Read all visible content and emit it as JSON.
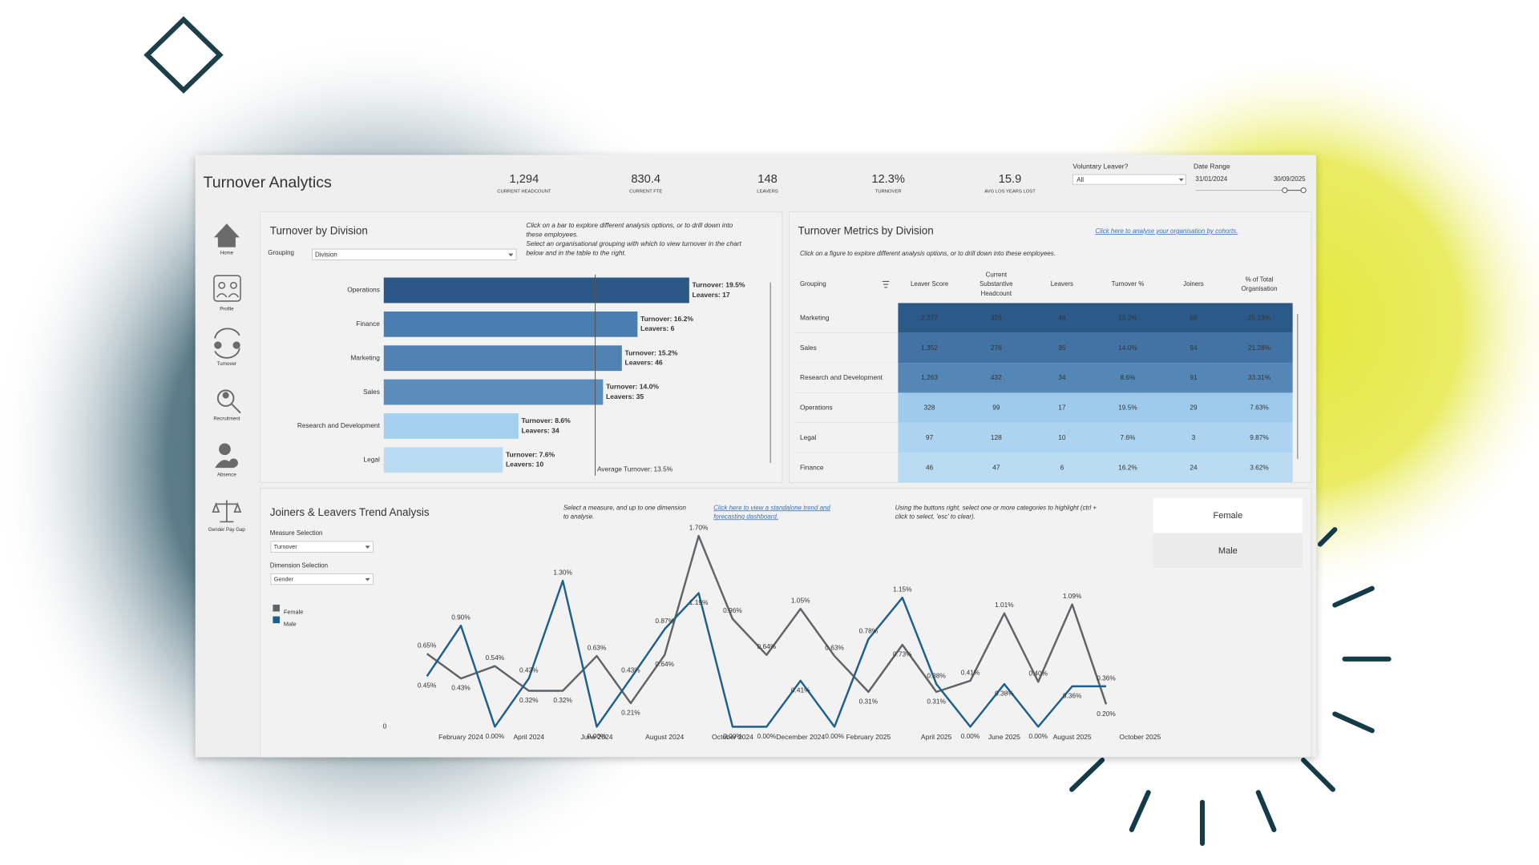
{
  "header": {
    "title": "Turnover Analytics"
  },
  "kpis": [
    {
      "value": "1,294",
      "label": "CURRENT HEADCOUNT",
      "color": "#222222"
    },
    {
      "value": "830.4",
      "label": "CURRENT FTE",
      "color": "#222222"
    },
    {
      "value": "148",
      "label": "LEAVERS",
      "color": "#222222"
    },
    {
      "value": "12.3%",
      "label": "TURNOVER",
      "color": "#d9702c"
    },
    {
      "value": "15.9",
      "label": "AVG LOS YEARS LOST",
      "color": "#222222"
    }
  ],
  "filters": {
    "voluntary_leaver": {
      "label": "Voluntary Leaver?",
      "value": "All"
    },
    "date_range": {
      "label": "Date Range",
      "start": "31/01/2024",
      "end": "30/09/2025"
    }
  },
  "nav": [
    "Home",
    "Profile",
    "Turnover",
    "Recruitment",
    "Absence",
    "Gender Pay Gap"
  ],
  "division_panel": {
    "notes": [
      "Click on a bar to explore different analysis options, or to drill down into",
      "these employees.",
      "Select an organisational grouping with which to view turnover in the chart",
      "below and in the table to the right."
    ],
    "grouping_label": "Grouping",
    "grouping_value": "Division"
  },
  "table": {
    "title": "Turnover Metrics by Division",
    "link": "Click here to analyse your organisation by cohorts.",
    "note": "Click on a figure to explore different analysis options, or to drill down into these employees.",
    "columns": [
      [
        "Grouping"
      ],
      [
        "Leaver Score"
      ],
      [
        "Current",
        "Substantive",
        "Headcount"
      ],
      [
        "Leavers"
      ],
      [
        "Turnover %"
      ],
      [
        "Joiners"
      ],
      [
        "% of Total",
        "Organisation"
      ]
    ],
    "rows": [
      [
        "Marketing",
        "2,277",
        "326",
        "46",
        "15.2%",
        "86",
        "25.13%"
      ],
      [
        "Sales",
        "1,352",
        "276",
        "35",
        "14.0%",
        "94",
        "21.28%"
      ],
      [
        "Research and Development",
        "1,263",
        "432",
        "34",
        "8.6%",
        "91",
        "33.31%"
      ],
      [
        "Operations",
        "328",
        "99",
        "17",
        "19.5%",
        "29",
        "7.63%"
      ],
      [
        "Legal",
        "97",
        "128",
        "10",
        "7.6%",
        "3",
        "9.87%"
      ],
      [
        "Finance",
        "46",
        "47",
        "6",
        "16.2%",
        "24",
        "3.62%"
      ]
    ],
    "row_colors": [
      "#2c5a88",
      "#4273a4",
      "#5486b6",
      "#9ecbeb",
      "#acd4f0",
      "#badcf3"
    ]
  },
  "trend_panel": {
    "measure_label": "Measure Selection",
    "measure_value": "Turnover",
    "dimension_label": "Dimension Selection",
    "dimension_value": "Gender",
    "note": [
      "Select a measure, and up to one dimension",
      "to analyse."
    ],
    "link": [
      "Click here to view a standalone trend and",
      "forecasting dashboard."
    ],
    "highlight_note": [
      "Using the buttons right, select one or more categories to highlight (ctrl +",
      "click to select, 'esc' to clear)."
    ],
    "buttons": [
      "Female",
      "Male"
    ]
  },
  "chart_data": [
    {
      "type": "hbar",
      "title": "Turnover by Division",
      "categories": [
        "Operations",
        "Finance",
        "Marketing",
        "Sales",
        "Research and Development",
        "Legal"
      ],
      "values": [
        19.5,
        16.2,
        15.2,
        14.0,
        8.6,
        7.6
      ],
      "value_labels": [
        "Turnover: 19.5%",
        "Turnover: 16.2%",
        "Turnover: 15.2%",
        "Turnover: 14.0%",
        "Turnover: 8.6%",
        "Turnover: 7.6%"
      ],
      "secondary_labels": [
        "Leavers: 17",
        "Leavers: 6",
        "Leavers: 46",
        "Leavers: 35",
        "Leavers: 34",
        "Leavers: 10"
      ],
      "colors": [
        "#2b5886",
        "#4a7db0",
        "#4f82b3",
        "#5a8cbc",
        "#a6d0ef",
        "#b9dcf4"
      ],
      "xlim": [
        0,
        24
      ],
      "reference_line": {
        "value": 13.5,
        "label": "Average Turnover: 13.5%"
      }
    },
    {
      "type": "line",
      "title": "Joiners & Leavers Trend Analysis",
      "categories": [
        null,
        "February 2024",
        null,
        "April 2024",
        null,
        "June 2024",
        null,
        "August 2024",
        null,
        "October 2024",
        null,
        "December 2024",
        null,
        "February 2025",
        null,
        "April 2025",
        null,
        "June 2025",
        null,
        "August 2025",
        null,
        "October 2025"
      ],
      "series": [
        {
          "name": "Female",
          "color": "#5f6468",
          "values": [
            0.65,
            0.43,
            0.54,
            0.32,
            0.32,
            0.63,
            0.21,
            0.64,
            1.7,
            0.96,
            0.64,
            1.05,
            0.63,
            0.31,
            0.73,
            0.31,
            0.41,
            1.01,
            0.4,
            1.09,
            0.2,
            null
          ],
          "value_labels": [
            "0.65%",
            "0.43%",
            "0.54%",
            "0.32%",
            "0.32%",
            "0.63%",
            "0.21%",
            "0.64%",
            "1.70%",
            "0.96%",
            "0.64%",
            "1.05%",
            "0.63%",
            "0.31%",
            "0.73%",
            "0.31%",
            "0.41%",
            "1.01%",
            "0.40%",
            "1.09%",
            "0.20%",
            null
          ]
        },
        {
          "name": "Male",
          "color": "#1f5f8c",
          "values": [
            0.45,
            0.9,
            0,
            0.43,
            1.3,
            0,
            0.43,
            0.87,
            1.19,
            0,
            0,
            0.41,
            0,
            0.78,
            1.15,
            0.38,
            0,
            0.38,
            0,
            0.36,
            0.36,
            null
          ],
          "value_labels": [
            "0.45%",
            "0.90%",
            "0.00%",
            "0.43%",
            "1.30%",
            "0.00%",
            "0.43%",
            "0.87%",
            "1.19%",
            "0.00%",
            "0.00%",
            "0.41%",
            "0.00%",
            "0.78%",
            "1.15%",
            "0.38%",
            "0.00%",
            "0.38%",
            "0.00%",
            "0.36%",
            "0.36%",
            null
          ]
        }
      ],
      "ylim": [
        0,
        1.8
      ],
      "yticks": [
        0
      ]
    }
  ]
}
